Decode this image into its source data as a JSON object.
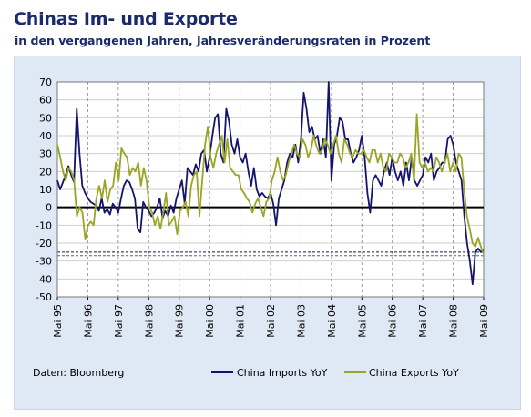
{
  "title": "Chinas Im- und Exporte",
  "subtitle": "in den vergangenen Jahren, Jahresveränderungsraten in Prozent",
  "source": "Daten: Bloomberg",
  "colors": {
    "imports": "#14146e",
    "exports": "#9aa521",
    "title": "#1a2a6c",
    "panel": "#dfe8f5"
  },
  "chart_data": {
    "type": "line",
    "ylim": [
      -50,
      70
    ],
    "yticks": [
      -50,
      -40,
      -30,
      -20,
      -10,
      0,
      10,
      20,
      30,
      40,
      50,
      60,
      70
    ],
    "x_tick_labels": [
      "Mai 95",
      "Mai 96",
      "Mai 97",
      "Mai 98",
      "Mai 99",
      "Mai 00",
      "Mai 01",
      "Mai 02",
      "Mai 03",
      "Mai 04",
      "Mai 05",
      "Mai 06",
      "Mai 07",
      "Mai 08",
      "Mai 09"
    ],
    "x_start": "1995-05",
    "x_end": "2009-05",
    "grid": "vertical dashed, horizontal solid",
    "zero_line": true,
    "reference_lines": [
      -25,
      -27
    ],
    "legend": "bottom",
    "series": [
      {
        "name": "China Imports YoY",
        "color": "#14146e",
        "values": [
          15,
          10,
          14,
          18,
          23,
          18,
          14,
          55,
          30,
          12,
          8,
          5,
          3,
          2,
          1,
          -2,
          5,
          -3,
          -1,
          -4,
          2,
          0,
          -3,
          5,
          12,
          15,
          14,
          10,
          5,
          -12,
          -14,
          3,
          0,
          -2,
          -5,
          -3,
          0,
          5,
          -6,
          -2,
          -5,
          1,
          -3,
          5,
          10,
          15,
          2,
          22,
          20,
          18,
          24,
          20,
          30,
          32,
          20,
          28,
          40,
          50,
          52,
          30,
          25,
          55,
          48,
          35,
          30,
          38,
          28,
          25,
          30,
          20,
          12,
          22,
          10,
          6,
          8,
          6,
          5,
          8,
          2,
          -10,
          5,
          10,
          15,
          25,
          30,
          28,
          35,
          25,
          38,
          64,
          55,
          42,
          45,
          38,
          40,
          30,
          38,
          28,
          70,
          15,
          35,
          40,
          50,
          48,
          38,
          38,
          30,
          25,
          28,
          32,
          40,
          28,
          8,
          -3,
          15,
          18,
          15,
          12,
          20,
          25,
          18,
          28,
          20,
          15,
          20,
          12,
          25,
          15,
          28,
          15,
          12,
          15,
          18,
          28,
          25,
          30,
          15,
          20,
          22,
          25,
          25,
          38,
          40,
          35,
          25,
          20,
          15,
          -5,
          -20,
          -30,
          -43,
          -25,
          -23,
          -25,
          -24
        ]
      },
      {
        "name": "China Exports YoY",
        "color": "#9aa521",
        "values": [
          35,
          28,
          20,
          15,
          22,
          20,
          15,
          -5,
          0,
          -3,
          -18,
          -10,
          -8,
          -10,
          5,
          12,
          5,
          15,
          3,
          10,
          12,
          25,
          15,
          33,
          30,
          28,
          18,
          22,
          20,
          25,
          12,
          22,
          15,
          0,
          -3,
          -10,
          -5,
          -12,
          -3,
          8,
          -10,
          -8,
          -5,
          -15,
          -2,
          0,
          3,
          -5,
          12,
          18,
          20,
          -5,
          15,
          35,
          45,
          28,
          22,
          30,
          35,
          40,
          25,
          38,
          22,
          20,
          18,
          18,
          10,
          8,
          5,
          3,
          -3,
          2,
          5,
          0,
          -5,
          3,
          5,
          15,
          20,
          28,
          20,
          15,
          18,
          25,
          30,
          35,
          30,
          28,
          38,
          35,
          28,
          32,
          40,
          34,
          30,
          32,
          38,
          35,
          30,
          35,
          40,
          30,
          25,
          38,
          35,
          30,
          28,
          32,
          30,
          30,
          32,
          28,
          25,
          32,
          32,
          25,
          30,
          22,
          20,
          30,
          28,
          25,
          25,
          30,
          28,
          22,
          25,
          30,
          15,
          52,
          25,
          22,
          25,
          20,
          22,
          20,
          28,
          25,
          20,
          25,
          30,
          20,
          25,
          20,
          30,
          28,
          10,
          -5,
          -12,
          -20,
          -22,
          -17,
          -22,
          -26
        ]
      }
    ]
  }
}
